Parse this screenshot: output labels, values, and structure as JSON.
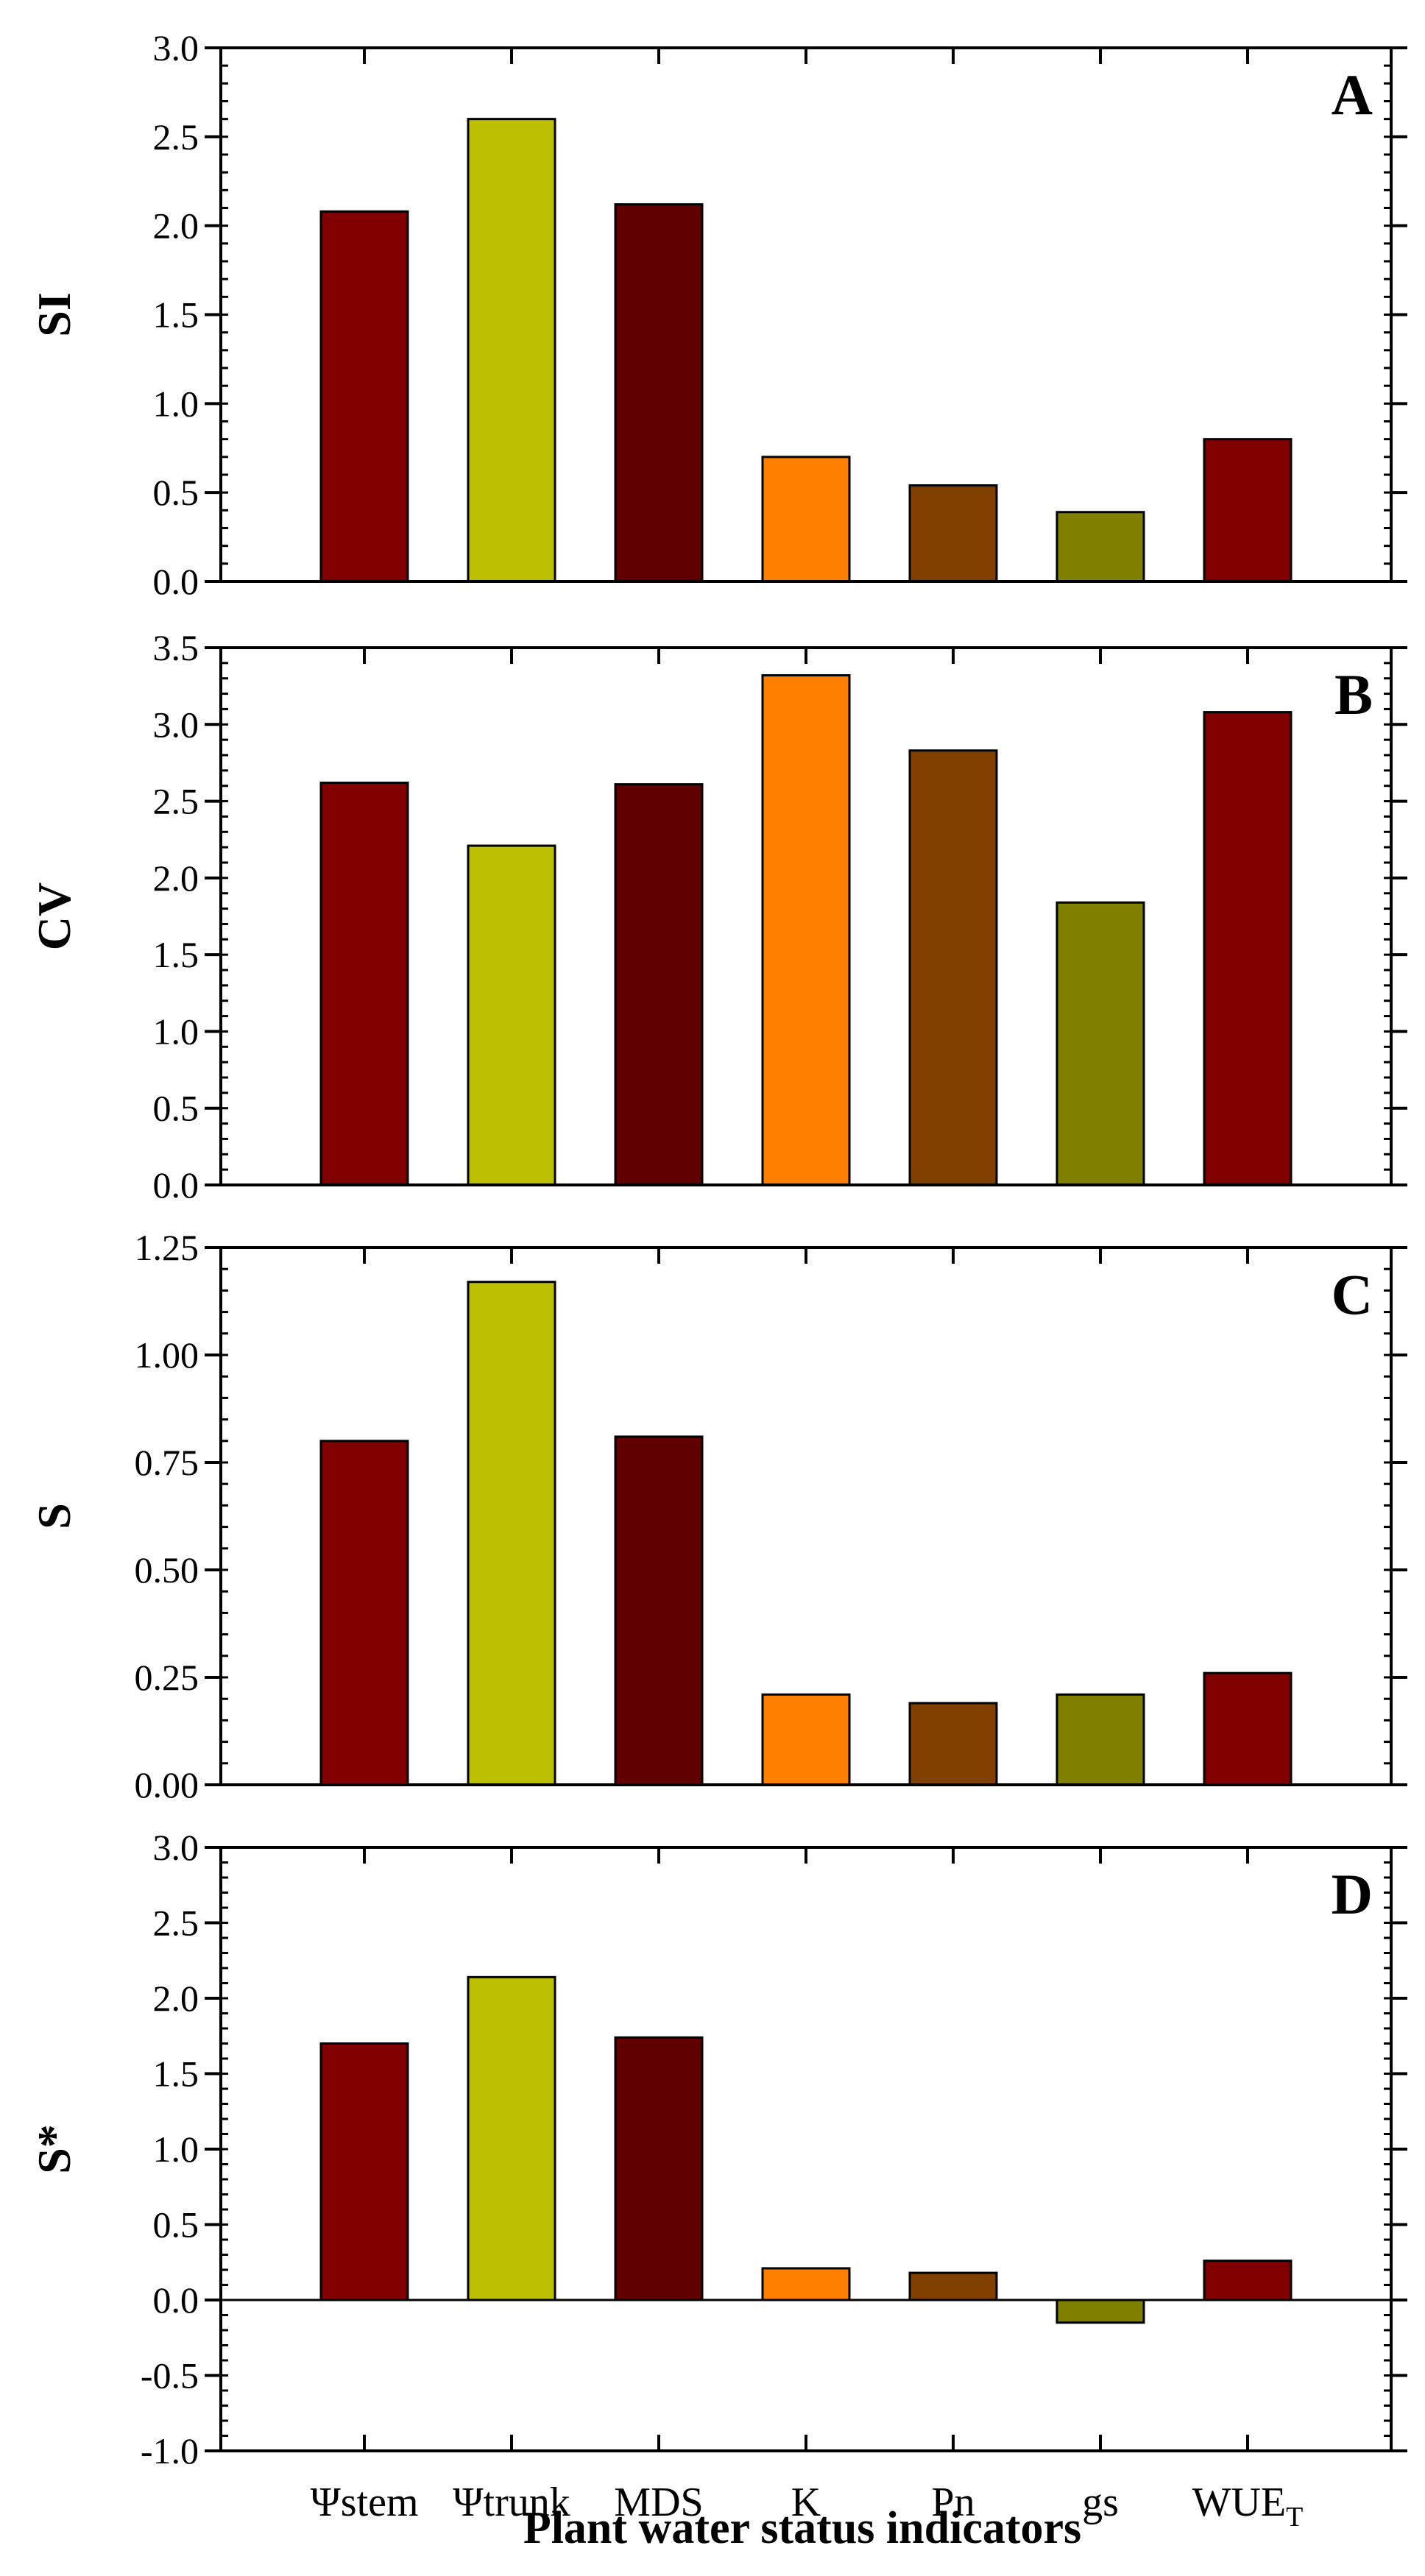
{
  "chart_data": [
    {
      "type": "bar",
      "panel_label": "A",
      "ylabel": "SI",
      "categories": [
        "Ψstem",
        "Ψtrunk",
        "MDS",
        "K",
        "Pn",
        "gs",
        "WUE_T"
      ],
      "values": [
        2.08,
        2.6,
        2.12,
        0.7,
        0.54,
        0.39,
        0.8
      ],
      "ylim": [
        0,
        3.0
      ],
      "yticks": [
        "0.0",
        "0.5",
        "1.0",
        "1.5",
        "2.0",
        "2.5",
        "3.0"
      ],
      "minor_step": 0.1
    },
    {
      "type": "bar",
      "panel_label": "B",
      "ylabel": "CV",
      "categories": [
        "Ψstem",
        "Ψtrunk",
        "MDS",
        "K",
        "Pn",
        "gs",
        "WUE_T"
      ],
      "values": [
        2.62,
        2.21,
        2.61,
        3.32,
        2.83,
        1.84,
        3.08
      ],
      "ylim": [
        0,
        3.5
      ],
      "yticks": [
        "0.0",
        "0.5",
        "1.0",
        "1.5",
        "2.0",
        "2.5",
        "3.0",
        "3.5"
      ],
      "minor_step": 0.1
    },
    {
      "type": "bar",
      "panel_label": "C",
      "ylabel": "S",
      "categories": [
        "Ψstem",
        "Ψtrunk",
        "MDS",
        "K",
        "Pn",
        "gs",
        "WUE_T"
      ],
      "values": [
        0.8,
        1.17,
        0.81,
        0.21,
        0.19,
        0.21,
        0.26
      ],
      "ylim": [
        0,
        1.25
      ],
      "yticks": [
        "0.00",
        "0.25",
        "0.50",
        "0.75",
        "1.00",
        "1.25"
      ],
      "minor_step": 0.05
    },
    {
      "type": "bar",
      "panel_label": "D",
      "ylabel": "S*",
      "categories": [
        "Ψstem",
        "Ψtrunk",
        "MDS",
        "K",
        "Pn",
        "gs",
        "WUE_T"
      ],
      "values": [
        1.7,
        2.14,
        1.74,
        0.21,
        0.18,
        -0.15,
        0.26
      ],
      "ylim": [
        -1.0,
        3.0
      ],
      "yticks": [
        "-1.0",
        "-0.5",
        "0.0",
        "0.5",
        "1.0",
        "1.5",
        "2.0",
        "2.5",
        "3.0"
      ],
      "minor_step": 0.1
    }
  ],
  "x_categories": [
    {
      "main": "Ψstem",
      "sub": ""
    },
    {
      "main": "Ψtrunk",
      "sub": ""
    },
    {
      "main": "MDS",
      "sub": ""
    },
    {
      "main": "K",
      "sub": ""
    },
    {
      "main": "Pn",
      "sub": ""
    },
    {
      "main": "gs",
      "sub": ""
    },
    {
      "main": "WUE",
      "sub": "T"
    }
  ],
  "xlabel": "Plant water status indicators",
  "bar_colors": [
    "#800000",
    "#bcc000",
    "#600000",
    "#ff8000",
    "#804000",
    "#808000",
    "#800000"
  ],
  "axis_color": "#000000"
}
